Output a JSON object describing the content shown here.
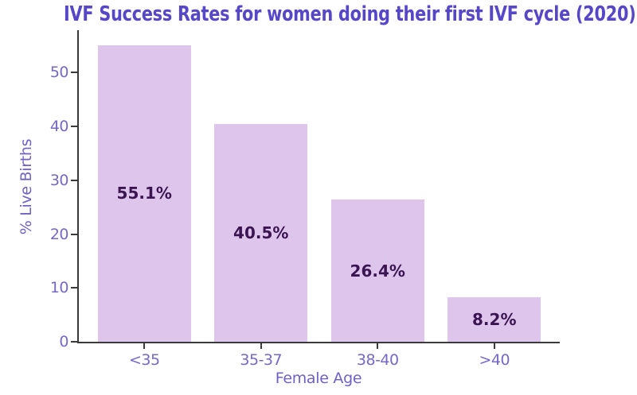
{
  "chart_data": {
    "type": "bar",
    "title": "IVF Success Rates for women doing their first IVF cycle (2020)",
    "categories": [
      "<35",
      "35-37",
      "38-40",
      ">40"
    ],
    "values": [
      55.1,
      40.5,
      26.4,
      8.2
    ],
    "bar_labels": [
      "55.1%",
      "40.5%",
      "26.4%",
      "8.2%"
    ],
    "xlabel": "Female Age",
    "ylabel": "% Live Births",
    "ylim": [
      0,
      57.9
    ],
    "yticks": [
      0,
      10,
      20,
      30,
      40,
      50
    ],
    "grid": false,
    "legend": "none",
    "bar_label_position": "center-of-bar",
    "colors": {
      "title_color": "#5646C8",
      "tick_color": "#7668C8",
      "label_color": "#6F61C6",
      "bar_color": "#DEC5EC",
      "value_color": "#3B1452",
      "axis_color": "#3A3A3A",
      "background": "#FFFFFF"
    }
  }
}
